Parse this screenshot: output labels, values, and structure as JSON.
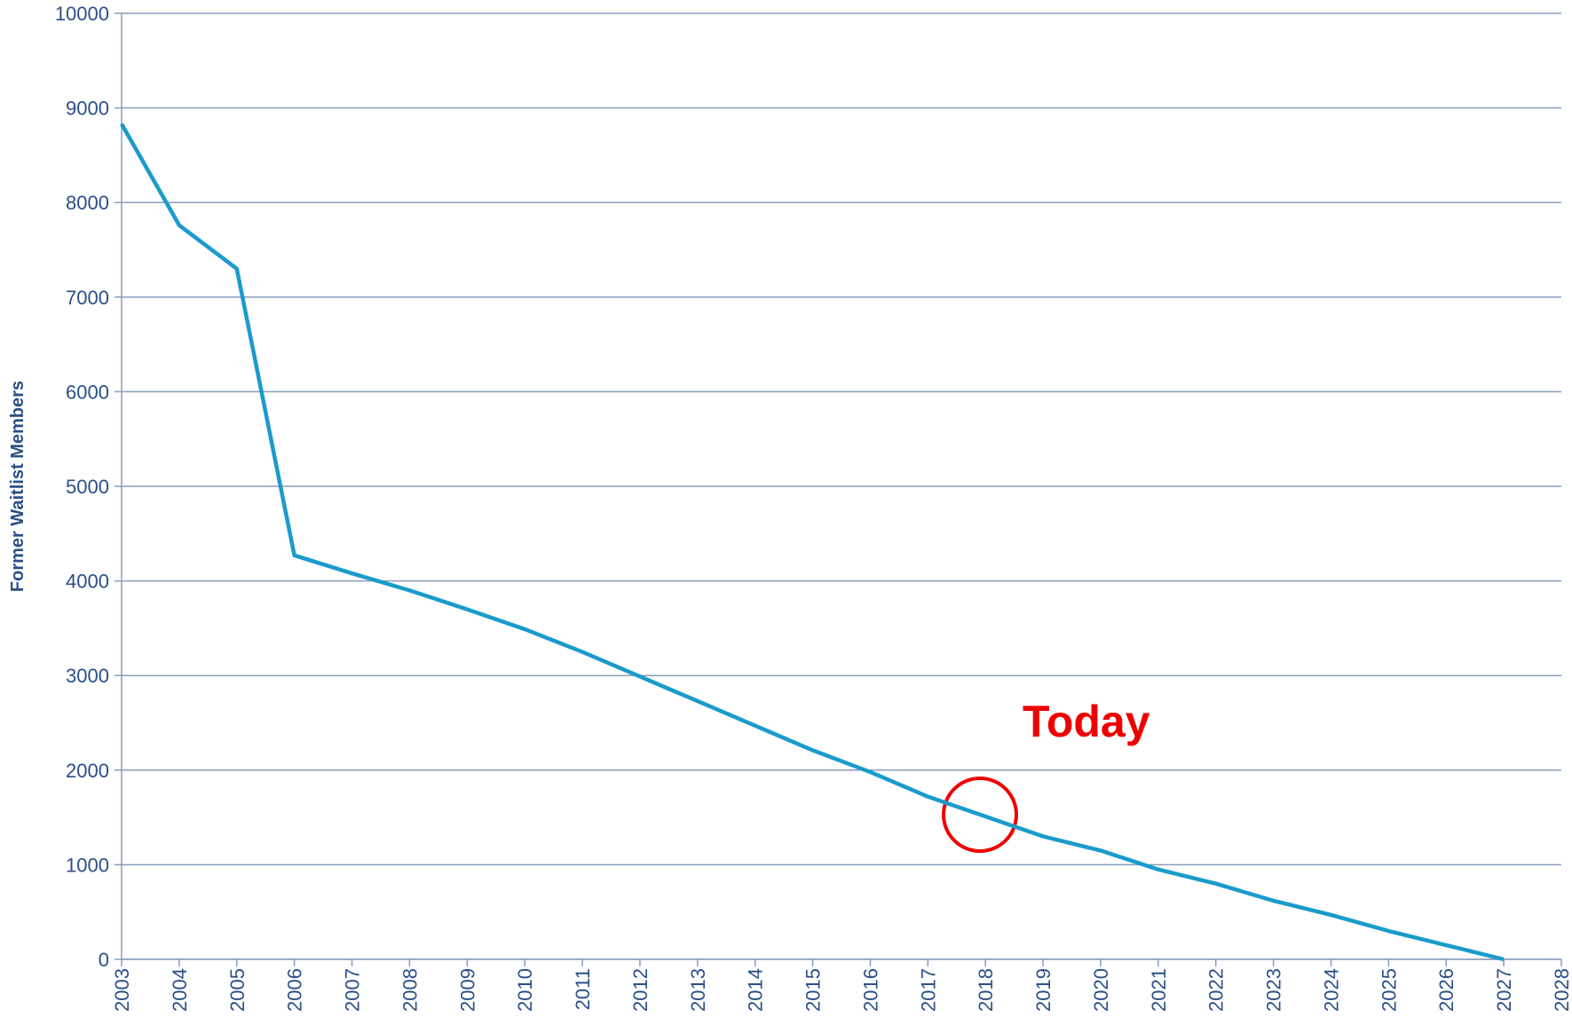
{
  "chart_data": {
    "type": "line",
    "y_label": "Former Waitlist Members",
    "annotation": "Today",
    "x": [
      2003,
      2004,
      2005,
      2006,
      2007,
      2008,
      2009,
      2010,
      2011,
      2012,
      2013,
      2014,
      2015,
      2016,
      2017,
      2018,
      2019,
      2020,
      2021,
      2022,
      2023,
      2024,
      2025,
      2026,
      2027
    ],
    "series": [
      {
        "name": "Former Waitlist Members",
        "color": "#1a9bcb",
        "values": [
          8830,
          7760,
          7300,
          4270,
          4080,
          3900,
          3700,
          3490,
          3250,
          2990,
          2730,
          2470,
          2210,
          1980,
          1720,
          1510,
          1300,
          1150,
          950,
          800,
          620,
          470,
          300,
          150,
          0
        ]
      }
    ],
    "xlim": [
      2003,
      2028
    ],
    "xticks": [
      2003,
      2004,
      2005,
      2006,
      2007,
      2008,
      2009,
      2010,
      2011,
      2012,
      2013,
      2014,
      2015,
      2016,
      2017,
      2018,
      2019,
      2020,
      2021,
      2022,
      2023,
      2024,
      2025,
      2026,
      2027,
      2028
    ],
    "ylim": [
      0,
      10000
    ],
    "yticks": [
      0,
      1000,
      2000,
      3000,
      4000,
      5000,
      6000,
      7000,
      8000,
      9000,
      10000
    ],
    "grid": true
  }
}
